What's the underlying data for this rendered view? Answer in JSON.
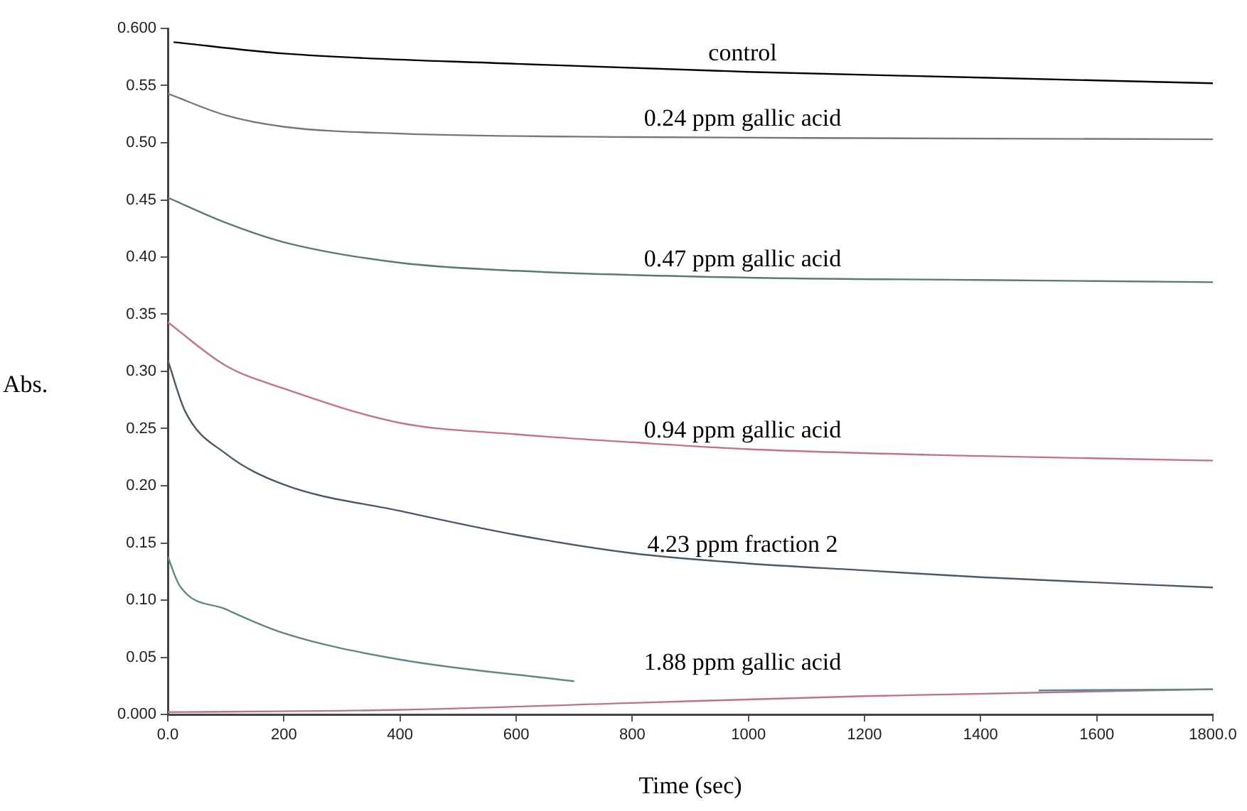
{
  "chart_data": {
    "type": "line",
    "xlabel": "Time (sec)",
    "ylabel": "Abs.",
    "xlim": [
      0,
      1800
    ],
    "xticks": [
      {
        "value": 0,
        "label": "0.0"
      },
      200,
      400,
      600,
      800,
      1000,
      1200,
      1400,
      1600,
      {
        "value": 1800,
        "label": "1800.0"
      }
    ],
    "ylim": [
      0,
      0.6
    ],
    "yticks": [
      {
        "value": 0,
        "label": "0.000"
      },
      {
        "value": 0.05,
        "label": "0.05"
      },
      {
        "value": 0.1,
        "label": "0.10"
      },
      {
        "value": 0.15,
        "label": "0.15"
      },
      {
        "value": 0.2,
        "label": "0.20"
      },
      {
        "value": 0.25,
        "label": "0.25"
      },
      {
        "value": 0.3,
        "label": "0.30"
      },
      {
        "value": 0.35,
        "label": "0.35"
      },
      {
        "value": 0.4,
        "label": "0.40"
      },
      {
        "value": 0.45,
        "label": "0.45"
      },
      {
        "value": 0.5,
        "label": "0.50"
      },
      {
        "value": 0.55,
        "label": "0.55"
      },
      {
        "value": 0.6,
        "label": "0.600"
      }
    ],
    "grid": false,
    "legend": false,
    "marker": "none",
    "line_style": "solid",
    "series": [
      {
        "name": "control",
        "color": "#000000",
        "x": [
          10,
          200,
          600,
          1000,
          1400,
          1800
        ],
        "values": [
          0.588,
          0.578,
          0.569,
          0.562,
          0.557,
          0.552
        ]
      },
      {
        "name": "0.24 ppm gallic acid",
        "color": "#7a7480",
        "x": [
          0,
          100,
          200,
          400,
          800,
          1200,
          1800
        ],
        "values": [
          0.543,
          0.524,
          0.514,
          0.508,
          0.505,
          0.504,
          0.503
        ]
      },
      {
        "name": "0.47 ppm gallic acid",
        "color": "#5a7a78",
        "x": [
          0,
          100,
          200,
          400,
          600,
          1000,
          1400,
          1800
        ],
        "values": [
          0.452,
          0.43,
          0.413,
          0.395,
          0.388,
          0.382,
          0.38,
          0.378
        ]
      },
      {
        "name": "0.94 ppm gallic acid",
        "color": "#c8708a",
        "x": [
          0,
          100,
          200,
          400,
          600,
          800,
          1000,
          1400,
          1800
        ],
        "values": [
          0.343,
          0.305,
          0.285,
          0.255,
          0.245,
          0.238,
          0.232,
          0.226,
          0.222
        ]
      },
      {
        "name": "4.23 ppm fraction 2",
        "color": "#4a5a6a",
        "x": [
          0,
          30,
          100,
          200,
          400,
          600,
          800,
          1000,
          1200,
          1400,
          1800
        ],
        "values": [
          0.31,
          0.265,
          0.228,
          0.201,
          0.178,
          0.157,
          0.141,
          0.132,
          0.126,
          0.12,
          0.111
        ]
      },
      {
        "name": "1.88 ppm gallic acid",
        "color": "#5a8a88",
        "x": [
          0,
          20,
          100,
          200,
          400,
          700,
          1000,
          1500,
          1800
        ],
        "values": [
          0.138,
          0.113,
          0.092,
          0.071,
          0.048,
          0.029,
          null,
          0.021,
          0.022
        ]
      },
      {
        "color": "#c07090",
        "x": [
          0,
          400,
          800,
          1200,
          1800
        ],
        "values": [
          0.002,
          0.004,
          0.01,
          0.016,
          0.022
        ]
      }
    ]
  }
}
